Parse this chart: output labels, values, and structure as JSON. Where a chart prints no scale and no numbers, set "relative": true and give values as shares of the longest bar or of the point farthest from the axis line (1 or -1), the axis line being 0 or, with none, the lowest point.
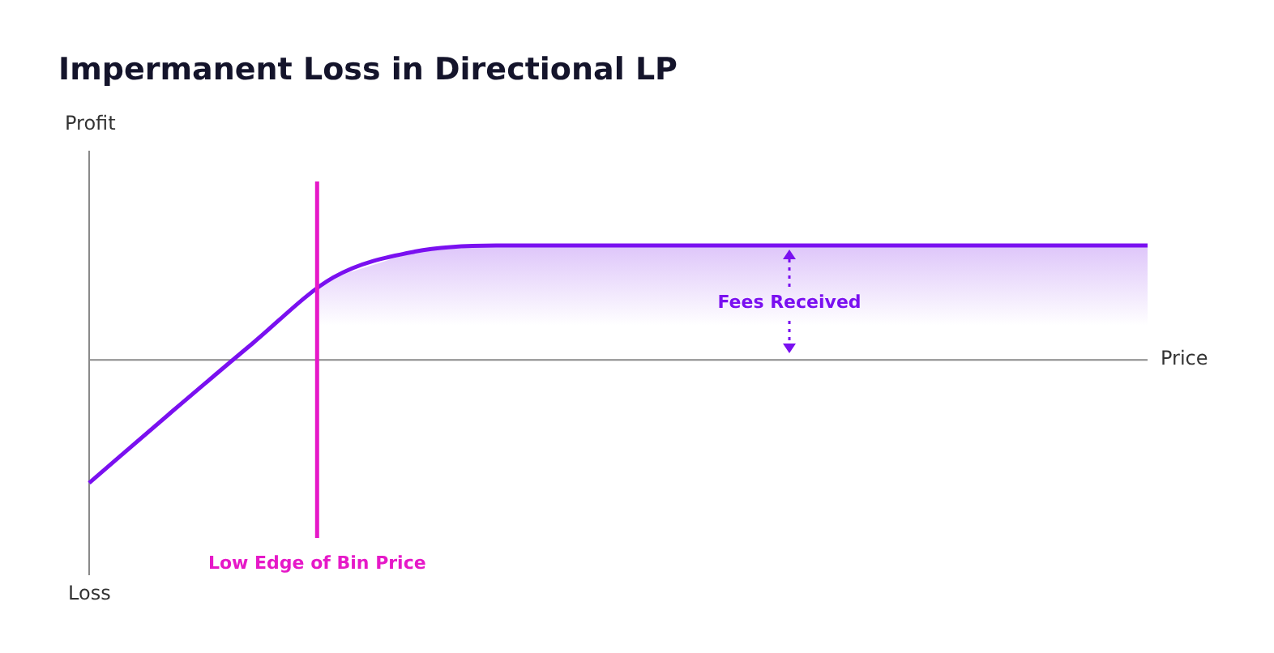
{
  "chart_data": {
    "type": "line",
    "title": "Impermanent Loss in Directional LP",
    "xlabel": "Price",
    "relative": true,
    "legend": false,
    "marker": "none",
    "categories": [
      null,
      null,
      null,
      null,
      null,
      null,
      null,
      null,
      null,
      null,
      null,
      null,
      null,
      null
    ],
    "series": [
      {
        "color": "#7a10f0",
        "values": [
          -1,
          -0.43,
          0.13,
          0.67,
          0.88,
          0.93,
          0.93,
          0.93,
          0.93,
          0.93,
          0.93,
          0.93,
          0.93,
          0.93
        ]
      }
    ],
    "annotations": [
      "Profit",
      "Loss",
      "Fees Received",
      "Low Edge of Bin Price"
    ]
  }
}
